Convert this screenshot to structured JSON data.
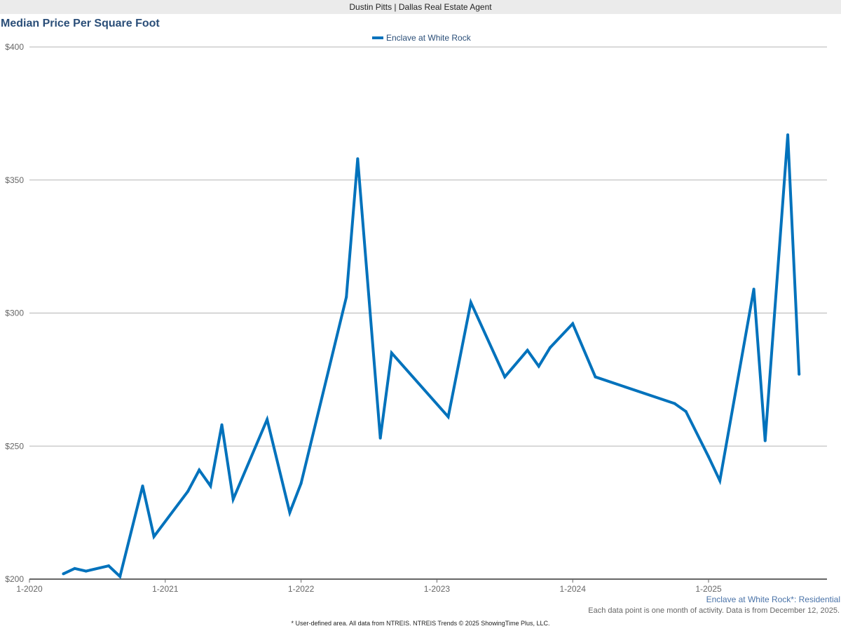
{
  "header": {
    "title": "Dustin Pitts | Dallas Real Estate Agent"
  },
  "chart_data": {
    "type": "line",
    "title": "Median Price Per Square Foot",
    "xlabel": "",
    "ylabel": "",
    "ylim": [
      200,
      400
    ],
    "yticks": [
      200,
      250,
      300,
      350,
      400
    ],
    "ytick_labels": [
      "$200",
      "$250",
      "$300",
      "$350",
      "$400"
    ],
    "xticks": [
      "2020-01",
      "2021-01",
      "2022-01",
      "2023-01",
      "2024-01",
      "2025-01"
    ],
    "xtick_labels": [
      "1-2020",
      "1-2021",
      "1-2022",
      "1-2023",
      "1-2024",
      "1-2025"
    ],
    "grid": true,
    "legend_position": "top-center",
    "series": [
      {
        "name": "Enclave at White Rock",
        "color": "#0072bc",
        "x": [
          "2020-04",
          "2020-05",
          "2020-06",
          "2020-08",
          "2020-09",
          "2020-11",
          "2020-12",
          "2021-03",
          "2021-04",
          "2021-05",
          "2021-06",
          "2021-07",
          "2021-10",
          "2021-12",
          "2022-01",
          "2022-05",
          "2022-06",
          "2022-08",
          "2022-09",
          "2023-02",
          "2023-04",
          "2023-07",
          "2023-09",
          "2023-10",
          "2023-11",
          "2024-01",
          "2024-03",
          "2024-10",
          "2024-11",
          "2025-01",
          "2025-02",
          "2025-05",
          "2025-06",
          "2025-08",
          "2025-09"
        ],
        "values": [
          202,
          204,
          203,
          205,
          201,
          235,
          216,
          233,
          241,
          235,
          258,
          230,
          260,
          225,
          236,
          306,
          358,
          253,
          285,
          261,
          304,
          276,
          286,
          280,
          287,
          296,
          276,
          266,
          263,
          246,
          237,
          309,
          252,
          367,
          277
        ]
      }
    ]
  },
  "footer": {
    "area_label": "Enclave at White Rock*: Residential",
    "note": "Each data point is one month of activity. Data is from December 12, 2025.",
    "credit": "* User-defined area. All data from NTREIS. NTREIS Trends © 2025 ShowingTime Plus, LLC."
  }
}
